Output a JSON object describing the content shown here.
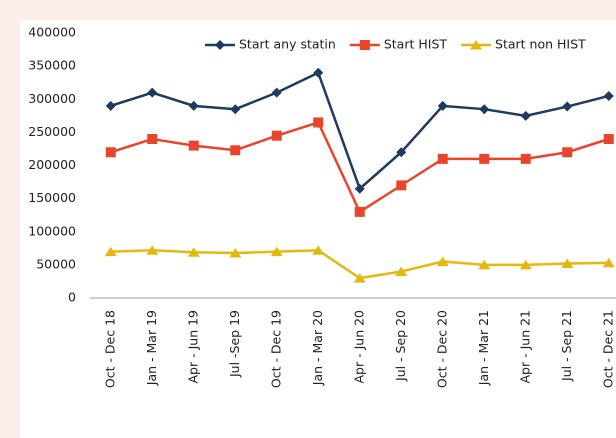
{
  "chart_data": {
    "type": "line",
    "categories": [
      "Oct - Dec 18",
      "Jan - Mar 19",
      "Apr - Jun 19",
      "Jul -Sep 19",
      "Oct - Dec 19",
      "Jan - Mar 20",
      "Apr - Jun 20",
      "Jul - Sep 20",
      "Oct - Dec 20",
      "Jan - Mar 21",
      "Apr - Jun 21",
      "Jul - Sep 21",
      "Oct - Dec 21"
    ],
    "series": [
      {
        "name": "Start any statin",
        "color": "#1f3a5f",
        "marker": "diamond",
        "values": [
          290000,
          310000,
          290000,
          285000,
          310000,
          340000,
          165000,
          220000,
          290000,
          285000,
          275000,
          289000,
          305000
        ]
      },
      {
        "name": "Start HIST",
        "color": "#e8452c",
        "marker": "square",
        "values": [
          220000,
          240000,
          230000,
          223000,
          245000,
          265000,
          130000,
          170000,
          210000,
          210000,
          210000,
          220000,
          240000
        ]
      },
      {
        "name": "Start non HIST",
        "color": "#e3b80f",
        "marker": "triangle",
        "values": [
          70000,
          72000,
          69000,
          68000,
          70000,
          72000,
          30000,
          40000,
          55000,
          50000,
          50000,
          52000,
          53000
        ]
      }
    ],
    "ylim": [
      0,
      400000
    ],
    "yticks": [
      0,
      50000,
      100000,
      150000,
      200000,
      250000,
      300000,
      350000,
      400000
    ],
    "grid": false,
    "legend": "top"
  }
}
